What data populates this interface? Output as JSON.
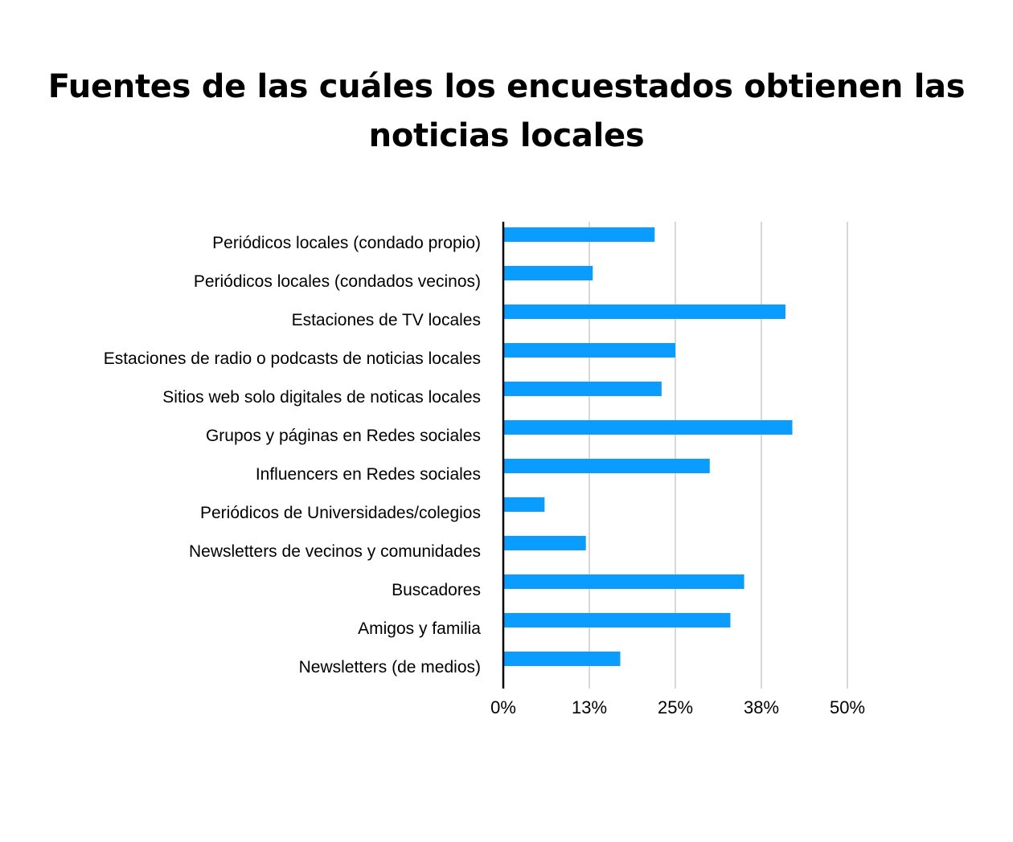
{
  "chart_data": {
    "type": "bar",
    "orientation": "horizontal",
    "title": "Fuentes de las cuáles los encuestados obtienen las noticias locales",
    "categories": [
      "Periódicos locales (condado propio)",
      "Periódicos locales (condados vecinos)",
      "Estaciones de TV locales",
      "Estaciones de radio o podcasts de noticias locales",
      "Sitios web solo digitales de noticas locales",
      "Grupos y páginas en Redes sociales",
      "Influencers en Redes sociales",
      "Periódicos de Universidades/colegios",
      "Newsletters de vecinos y comunidades",
      "Buscadores",
      "Amigos y familia",
      "Newsletters (de medios)"
    ],
    "values": [
      22,
      13,
      41,
      25,
      23,
      42,
      30,
      6,
      12,
      35,
      33,
      17
    ],
    "unit": "%",
    "xlim": [
      0,
      50
    ],
    "xticks": [
      0,
      12.5,
      25,
      37.5,
      50
    ],
    "xtick_labels": [
      "0%",
      "13%",
      "25%",
      "38%",
      "50%"
    ],
    "xlabel": "",
    "ylabel": "",
    "grid": "vertical",
    "legend": "none",
    "bar_color": "#0a9dff",
    "grid_color": "#cccccc",
    "axis_color": "#000000"
  }
}
